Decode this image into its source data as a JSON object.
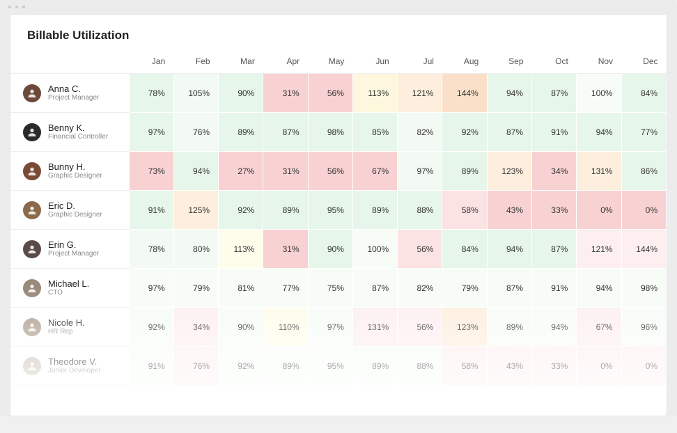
{
  "title": "Billable Utilization",
  "months": [
    "Jan",
    "Feb",
    "Mar",
    "Apr",
    "May",
    "Jun",
    "Jul",
    "Aug",
    "Sep",
    "Oct",
    "Nov",
    "Dec"
  ],
  "colors": {
    "green_light": "#e7f6ea",
    "green_lighter": "#f2faf3",
    "green_pale": "#f7fcf7",
    "pink": "#f8d1d2",
    "pink_light": "#fbe2e3",
    "pink_pale": "#fdeff0",
    "orange": "#fbe0c9",
    "orange_light": "#fdeedd",
    "yellow": "#fdf8dd",
    "yellow_pale": "#fefceb",
    "white": "#ffffff"
  },
  "people": [
    {
      "name": "Anna C.",
      "role": "Project Manager",
      "avatar_bg": "#6b4a3a",
      "cells": [
        {
          "v": "78%",
          "c": "#e7f6ea"
        },
        {
          "v": "105%",
          "c": "#f2faf3"
        },
        {
          "v": "90%",
          "c": "#e7f6ea"
        },
        {
          "v": "31%",
          "c": "#f8d1d2"
        },
        {
          "v": "56%",
          "c": "#f8d1d2"
        },
        {
          "v": "113%",
          "c": "#fdf8dd"
        },
        {
          "v": "121%",
          "c": "#fdeedd"
        },
        {
          "v": "144%",
          "c": "#fbe0c9"
        },
        {
          "v": "94%",
          "c": "#e7f6ea"
        },
        {
          "v": "87%",
          "c": "#e7f6ea"
        },
        {
          "v": "100%",
          "c": "#f7fcf7"
        },
        {
          "v": "84%",
          "c": "#e7f6ea"
        }
      ]
    },
    {
      "name": "Benny K.",
      "role": "Financial Controller",
      "avatar_bg": "#2a2a2a",
      "cells": [
        {
          "v": "97%",
          "c": "#e7f6ea"
        },
        {
          "v": "76%",
          "c": "#f2faf3"
        },
        {
          "v": "89%",
          "c": "#e7f6ea"
        },
        {
          "v": "87%",
          "c": "#e7f6ea"
        },
        {
          "v": "98%",
          "c": "#e7f6ea"
        },
        {
          "v": "85%",
          "c": "#e7f6ea"
        },
        {
          "v": "82%",
          "c": "#f2faf3"
        },
        {
          "v": "92%",
          "c": "#e7f6ea"
        },
        {
          "v": "87%",
          "c": "#e7f6ea"
        },
        {
          "v": "91%",
          "c": "#e7f6ea"
        },
        {
          "v": "94%",
          "c": "#e7f6ea"
        },
        {
          "v": "77%",
          "c": "#e7f6ea"
        }
      ]
    },
    {
      "name": "Bunny H.",
      "role": "Graphic Designer",
      "avatar_bg": "#7a4a35",
      "cells": [
        {
          "v": "73%",
          "c": "#f8d1d2"
        },
        {
          "v": "94%",
          "c": "#e7f6ea"
        },
        {
          "v": "27%",
          "c": "#f8d1d2"
        },
        {
          "v": "31%",
          "c": "#f8d1d2"
        },
        {
          "v": "56%",
          "c": "#f8d1d2"
        },
        {
          "v": "67%",
          "c": "#f8d1d2"
        },
        {
          "v": "97%",
          "c": "#f2faf3"
        },
        {
          "v": "89%",
          "c": "#e7f6ea"
        },
        {
          "v": "123%",
          "c": "#fdeedd"
        },
        {
          "v": "34%",
          "c": "#f8d1d2"
        },
        {
          "v": "131%",
          "c": "#fdeedd"
        },
        {
          "v": "86%",
          "c": "#e7f6ea"
        }
      ]
    },
    {
      "name": "Eric D.",
      "role": "Graphic Designer",
      "avatar_bg": "#8a6a4a",
      "cells": [
        {
          "v": "91%",
          "c": "#e7f6ea"
        },
        {
          "v": "125%",
          "c": "#fdeedd"
        },
        {
          "v": "92%",
          "c": "#e7f6ea"
        },
        {
          "v": "89%",
          "c": "#e7f6ea"
        },
        {
          "v": "95%",
          "c": "#e7f6ea"
        },
        {
          "v": "89%",
          "c": "#e7f6ea"
        },
        {
          "v": "88%",
          "c": "#e7f6ea"
        },
        {
          "v": "58%",
          "c": "#fbe2e3"
        },
        {
          "v": "43%",
          "c": "#f8d1d2"
        },
        {
          "v": "33%",
          "c": "#f8d1d2"
        },
        {
          "v": "0%",
          "c": "#f8d1d2"
        },
        {
          "v": "0%",
          "c": "#f8d1d2"
        }
      ]
    },
    {
      "name": "Erin G.",
      "role": "Project Manager",
      "avatar_bg": "#5a4a4a",
      "cells": [
        {
          "v": "78%",
          "c": "#f2faf3"
        },
        {
          "v": "80%",
          "c": "#f2faf3"
        },
        {
          "v": "113%",
          "c": "#fefceb"
        },
        {
          "v": "31%",
          "c": "#f8d1d2"
        },
        {
          "v": "90%",
          "c": "#e7f6ea"
        },
        {
          "v": "100%",
          "c": "#f7fcf7"
        },
        {
          "v": "56%",
          "c": "#fbe2e3"
        },
        {
          "v": "84%",
          "c": "#e7f6ea"
        },
        {
          "v": "94%",
          "c": "#e7f6ea"
        },
        {
          "v": "87%",
          "c": "#e7f6ea"
        },
        {
          "v": "121%",
          "c": "#fdeff0"
        },
        {
          "v": "144%",
          "c": "#fdeff0"
        }
      ]
    },
    {
      "name": "Michael L.",
      "role": "CTO",
      "avatar_bg": "#9a8a7a",
      "cells": [
        {
          "v": "97%",
          "c": "#f7fcf7"
        },
        {
          "v": "79%",
          "c": "#f7fcf7"
        },
        {
          "v": "81%",
          "c": "#f7fcf7"
        },
        {
          "v": "77%",
          "c": "#f7fcf7"
        },
        {
          "v": "75%",
          "c": "#f7fcf7"
        },
        {
          "v": "87%",
          "c": "#f7fcf7"
        },
        {
          "v": "82%",
          "c": "#f7fcf7"
        },
        {
          "v": "79%",
          "c": "#f7fcf7"
        },
        {
          "v": "87%",
          "c": "#f7fcf7"
        },
        {
          "v": "91%",
          "c": "#f7fcf7"
        },
        {
          "v": "94%",
          "c": "#f7fcf7"
        },
        {
          "v": "98%",
          "c": "#f7fcf7"
        }
      ]
    },
    {
      "name": "Nicole H.",
      "role": "HR Rep",
      "avatar_bg": "#b0a090",
      "cells": [
        {
          "v": "92%",
          "c": "#f7fcf7"
        },
        {
          "v": "34%",
          "c": "#fdeff0"
        },
        {
          "v": "90%",
          "c": "#f7fcf7"
        },
        {
          "v": "110%",
          "c": "#fefceb"
        },
        {
          "v": "97%",
          "c": "#f7fcf7"
        },
        {
          "v": "131%",
          "c": "#fdeff0"
        },
        {
          "v": "56%",
          "c": "#fdeff0"
        },
        {
          "v": "123%",
          "c": "#fdeedd"
        },
        {
          "v": "89%",
          "c": "#f7fcf7"
        },
        {
          "v": "94%",
          "c": "#f7fcf7"
        },
        {
          "v": "67%",
          "c": "#fdeff0"
        },
        {
          "v": "96%",
          "c": "#f7fcf7"
        }
      ]
    },
    {
      "name": "Theodore V.",
      "role": "Junior Developer",
      "avatar_bg": "#c8c0b0",
      "cells": [
        {
          "v": "91%",
          "c": "#f7fcf7"
        },
        {
          "v": "76%",
          "c": "#fdeff0"
        },
        {
          "v": "92%",
          "c": "#f7fcf7"
        },
        {
          "v": "89%",
          "c": "#f7fcf7"
        },
        {
          "v": "95%",
          "c": "#f7fcf7"
        },
        {
          "v": "89%",
          "c": "#f7fcf7"
        },
        {
          "v": "88%",
          "c": "#f7fcf7"
        },
        {
          "v": "58%",
          "c": "#fdeff0"
        },
        {
          "v": "43%",
          "c": "#fdeff0"
        },
        {
          "v": "33%",
          "c": "#fdeff0"
        },
        {
          "v": "0%",
          "c": "#fdeff0"
        },
        {
          "v": "0%",
          "c": "#fdeff0"
        }
      ]
    }
  ]
}
